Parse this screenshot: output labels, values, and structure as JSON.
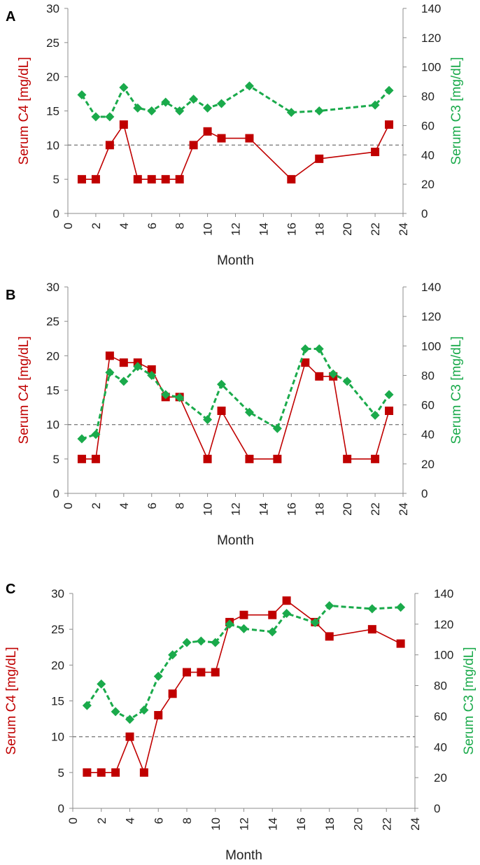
{
  "chart_data": [
    {
      "type": "line",
      "panel_label": "A",
      "xlabel": "Month",
      "ylabel_left": "Serum C4 [mg/dL]",
      "ylabel_right": "Serum C3 [mg/dL]",
      "xlim": [
        0,
        24
      ],
      "ylim_left": [
        0,
        30
      ],
      "ylim_right": [
        0,
        140
      ],
      "x_ticks": [
        "0",
        "2",
        "4",
        "6",
        "8",
        "10",
        "12",
        "14",
        "16",
        "18",
        "20",
        "22",
        "24"
      ],
      "y_ticks_left": [
        "0",
        "5",
        "10",
        "15",
        "20",
        "25",
        "30"
      ],
      "y_ticks_right": [
        "0",
        "20",
        "40",
        "60",
        "80",
        "100",
        "120",
        "140"
      ],
      "reference_line": 10,
      "series": [
        {
          "name": "Serum C4",
          "axis": "left",
          "color": "#c00000",
          "marker": "square",
          "style": "solid",
          "x": [
            1,
            2,
            3,
            4,
            5,
            6,
            7,
            8,
            9,
            10,
            11,
            13,
            16,
            18,
            22,
            23
          ],
          "y": [
            5,
            5,
            10,
            13,
            5,
            5,
            5,
            5,
            10,
            12,
            11,
            11,
            5,
            8,
            9,
            13
          ]
        },
        {
          "name": "Serum C3",
          "axis": "right",
          "color": "#1aaa4b",
          "marker": "diamond",
          "style": "dashed",
          "x": [
            1,
            2,
            3,
            4,
            5,
            6,
            7,
            8,
            9,
            10,
            11,
            13,
            16,
            18,
            22,
            23
          ],
          "y": [
            81,
            66,
            66,
            86,
            72,
            70,
            76,
            70,
            78,
            72,
            75,
            87,
            69,
            70,
            74,
            84
          ]
        }
      ]
    },
    {
      "type": "line",
      "panel_label": "B",
      "xlabel": "Month",
      "ylabel_left": "Serum C4 [mg/dL]",
      "ylabel_right": "Serum C3 [mg/dL]",
      "xlim": [
        0,
        24
      ],
      "ylim_left": [
        0,
        30
      ],
      "ylim_right": [
        0,
        140
      ],
      "x_ticks": [
        "0",
        "2",
        "4",
        "6",
        "8",
        "10",
        "12",
        "14",
        "16",
        "18",
        "20",
        "22",
        "24"
      ],
      "y_ticks_left": [
        "0",
        "5",
        "10",
        "15",
        "20",
        "25",
        "30"
      ],
      "y_ticks_right": [
        "0",
        "20",
        "40",
        "60",
        "80",
        "100",
        "120",
        "140"
      ],
      "reference_line": 10,
      "series": [
        {
          "name": "Serum C4",
          "axis": "left",
          "color": "#c00000",
          "marker": "square",
          "style": "solid",
          "x": [
            1,
            2,
            3,
            4,
            5,
            6,
            7,
            8,
            10,
            11,
            13,
            15,
            17,
            18,
            19,
            20,
            22,
            23
          ],
          "y": [
            5,
            5,
            20,
            19,
            19,
            18,
            14,
            14,
            5,
            12,
            5,
            5,
            19,
            17,
            17,
            5,
            5,
            12
          ]
        },
        {
          "name": "Serum C3",
          "axis": "right",
          "color": "#1aaa4b",
          "marker": "diamond",
          "style": "dashed",
          "x": [
            1,
            2,
            3,
            4,
            5,
            6,
            7,
            8,
            10,
            11,
            13,
            15,
            17,
            18,
            19,
            20,
            22,
            23
          ],
          "y": [
            37,
            40,
            82,
            76,
            86,
            80,
            67,
            65,
            50,
            74,
            55,
            44,
            98,
            98,
            81,
            76,
            53,
            67
          ]
        }
      ]
    },
    {
      "type": "line",
      "panel_label": "C",
      "xlabel": "Month",
      "ylabel_left": "Serum C4 [mg/dL]",
      "ylabel_right": "Serum C3 [mg/dL]",
      "xlim": [
        0,
        24
      ],
      "ylim_left": [
        0,
        30
      ],
      "ylim_right": [
        0,
        140
      ],
      "x_ticks": [
        "0",
        "2",
        "4",
        "6",
        "8",
        "10",
        "12",
        "14",
        "16",
        "18",
        "20",
        "22",
        "24"
      ],
      "y_ticks_left": [
        "0",
        "5",
        "10",
        "15",
        "20",
        "25",
        "30"
      ],
      "y_ticks_right": [
        "0",
        "20",
        "40",
        "60",
        "80",
        "100",
        "120",
        "140"
      ],
      "reference_line": 10,
      "series": [
        {
          "name": "Serum C4",
          "axis": "left",
          "color": "#c00000",
          "marker": "square",
          "style": "solid",
          "x": [
            1,
            2,
            3,
            4,
            5,
            6,
            7,
            8,
            9,
            10,
            11,
            12,
            14,
            15,
            17,
            18,
            21,
            23
          ],
          "y": [
            5,
            5,
            5,
            10,
            5,
            13,
            16,
            19,
            19,
            19,
            26,
            27,
            27,
            29,
            26,
            24,
            25,
            23
          ]
        },
        {
          "name": "Serum C3",
          "axis": "right",
          "color": "#1aaa4b",
          "marker": "diamond",
          "style": "dashed",
          "x": [
            1,
            2,
            3,
            4,
            5,
            6,
            7,
            8,
            9,
            10,
            11,
            12,
            14,
            15,
            17,
            18,
            21,
            23
          ],
          "y": [
            67,
            81,
            63,
            58,
            64,
            86,
            100,
            108,
            109,
            108,
            120,
            117,
            115,
            127,
            121,
            132,
            130,
            131
          ]
        }
      ]
    }
  ]
}
